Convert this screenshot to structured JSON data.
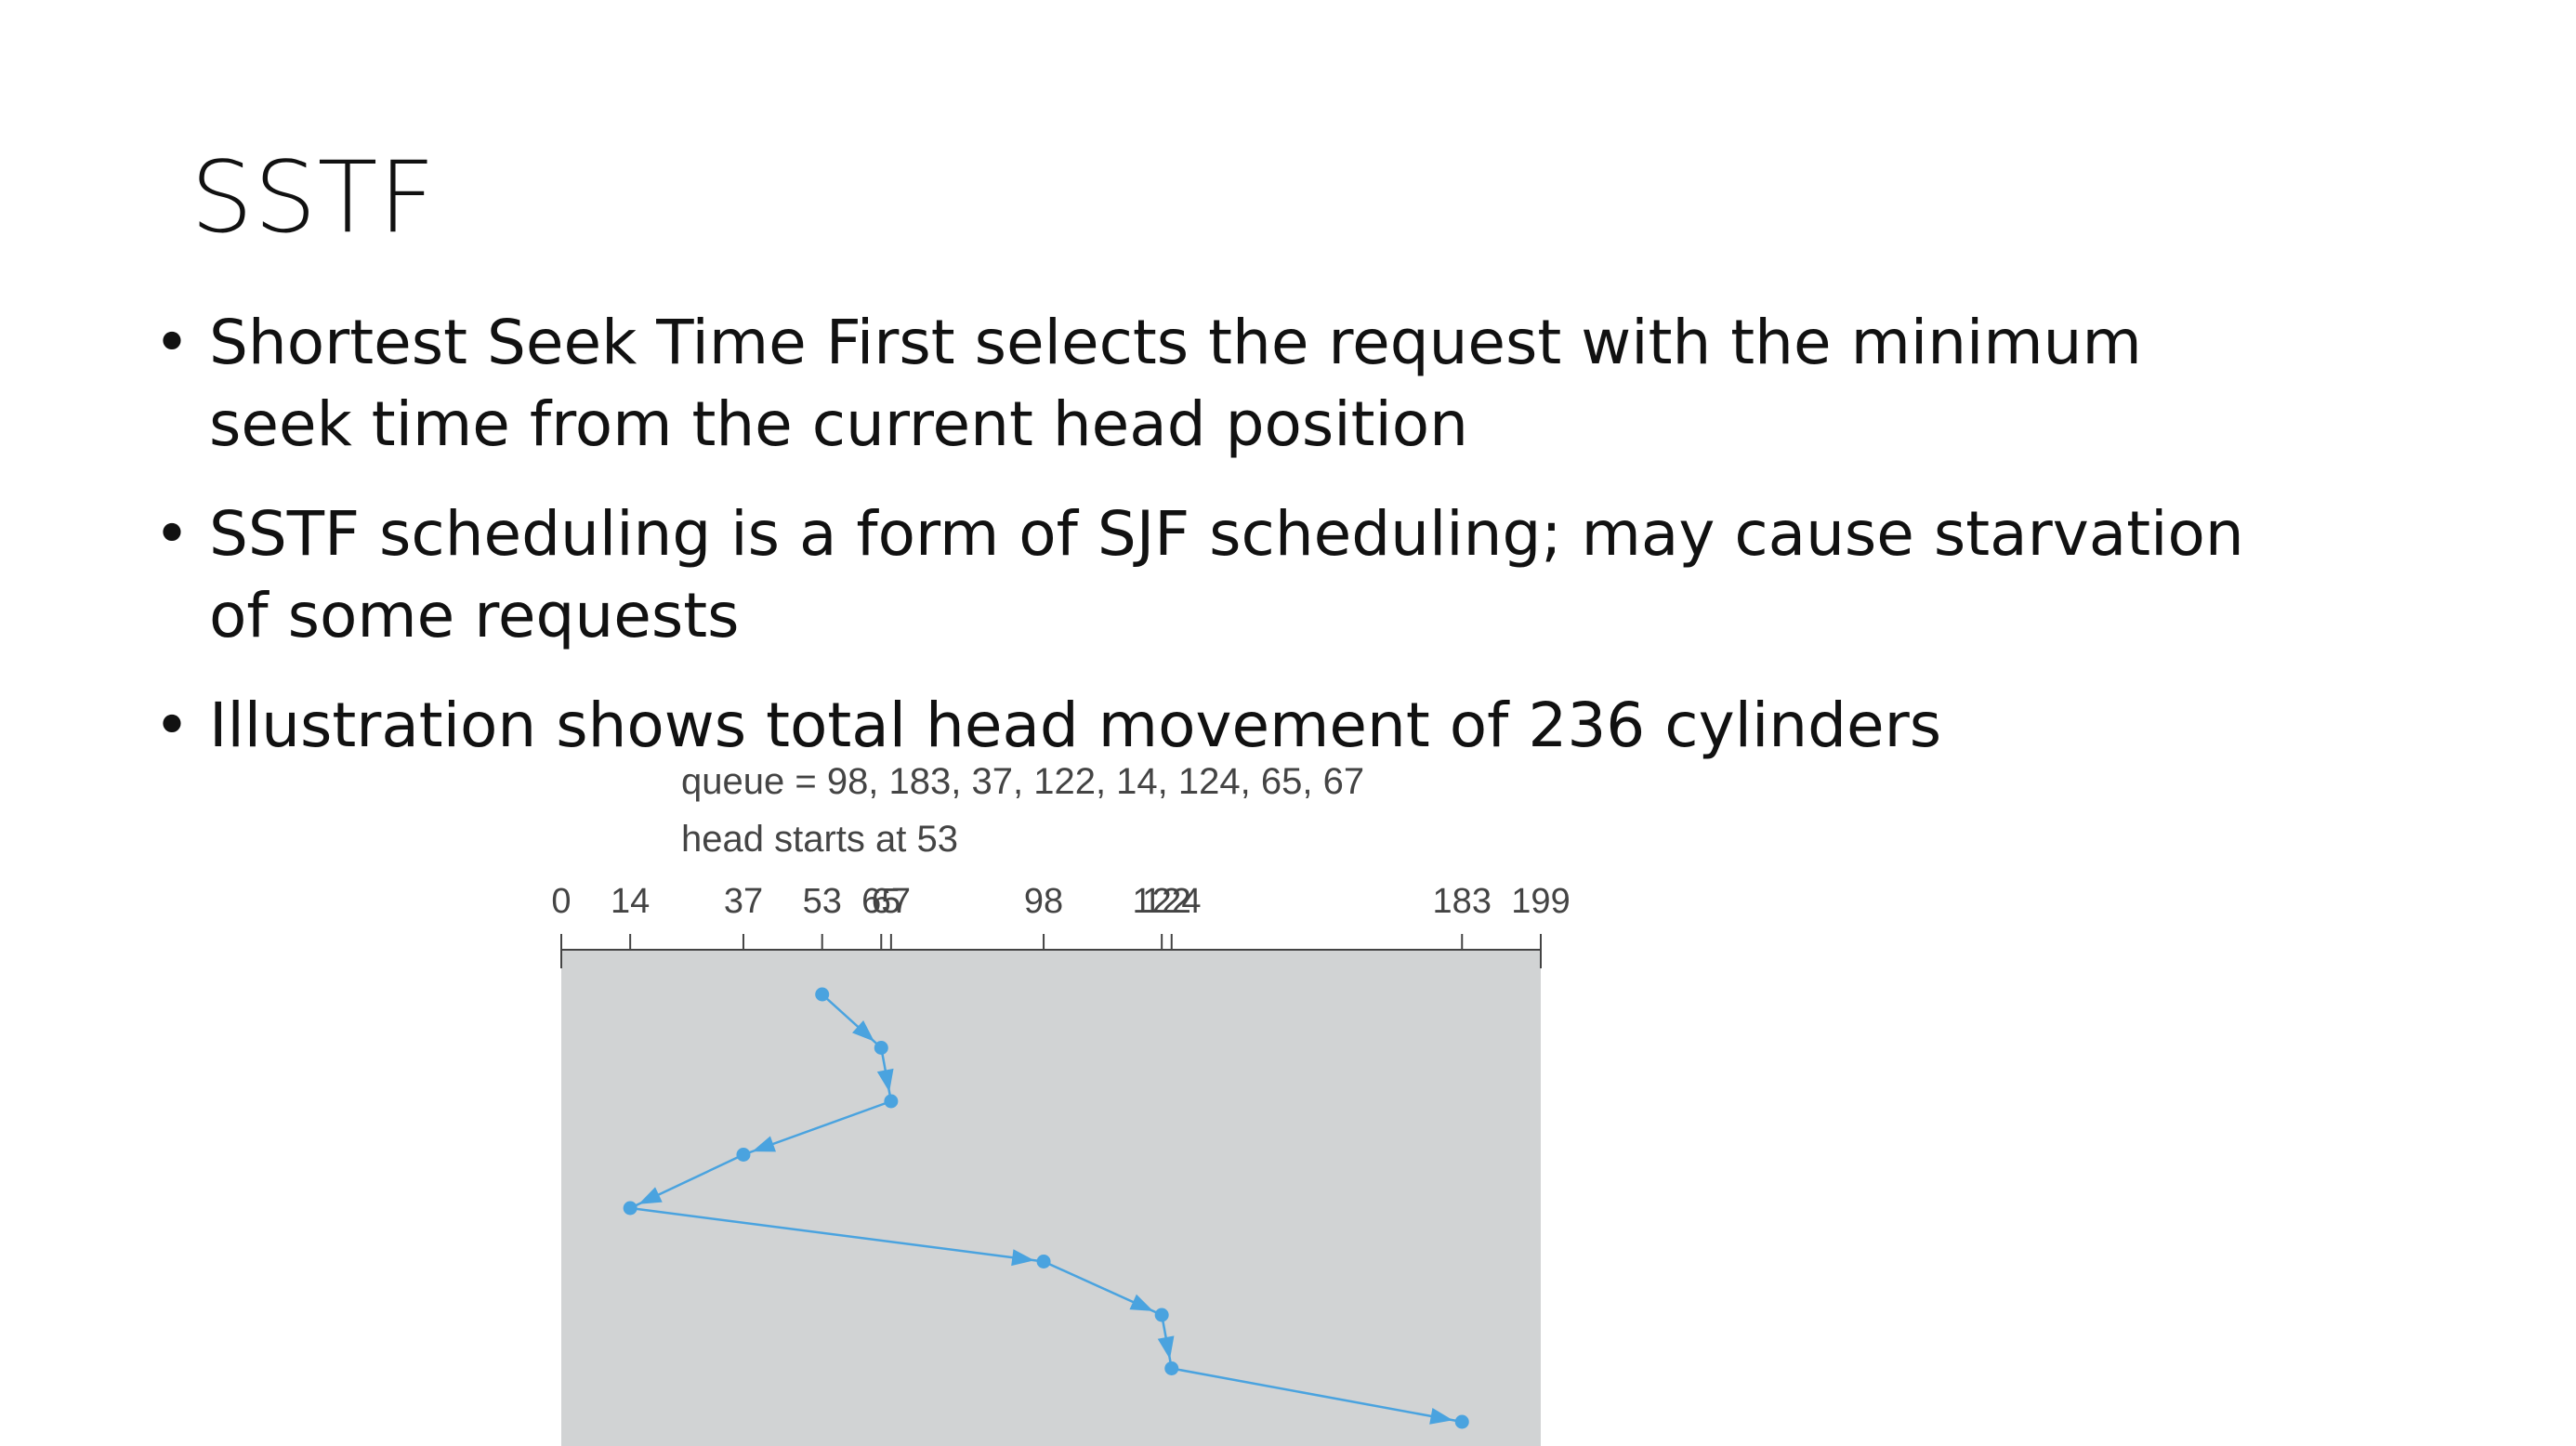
{
  "slide": {
    "title": "SSTF",
    "bullets": [
      "Shortest Seek Time First selects the request with the minimum seek time from the current head position",
      "SSTF scheduling is a form of SJF scheduling; may cause starvation of some requests",
      "Illustration shows total head movement of 236 cylinders"
    ]
  },
  "diagram": {
    "queue_label": "queue = 98, 183, 37, 122, 14, 124, 65, 67",
    "head_label": "head starts at 53",
    "axis_min": 0,
    "axis_max": 199,
    "ticks": [
      0,
      14,
      37,
      53,
      65,
      67,
      98,
      122,
      124,
      183,
      199
    ],
    "path": [
      53,
      65,
      67,
      37,
      14,
      98,
      122,
      124,
      183
    ],
    "colors": {
      "plot_background": "#d1d3d4",
      "path": "#4aa3df",
      "axis": "#444444"
    }
  }
}
